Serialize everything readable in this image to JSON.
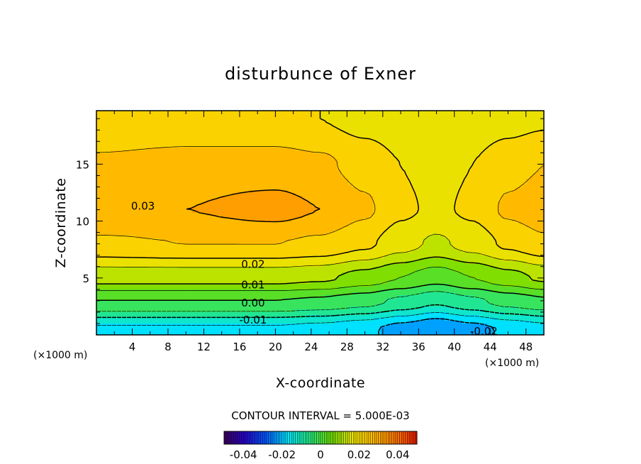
{
  "chart_data": {
    "type": "heatmap",
    "title": "disturbunce of Exner",
    "xlabel": "X-coordinate",
    "ylabel": "Z-coordinate",
    "x_unit": "(×1000 m)",
    "y_unit": "(×1000 m)",
    "xlim": [
      0,
      50
    ],
    "ylim": [
      0,
      19.7
    ],
    "x_ticks": [
      4,
      8,
      12,
      16,
      20,
      24,
      28,
      32,
      36,
      40,
      44,
      48
    ],
    "y_ticks": [
      5,
      10,
      15
    ],
    "contour_interval_text": "CONTOUR INTERVAL = 5.000E-03",
    "contour_interval": 0.005,
    "contour_labels": [
      {
        "text": "0.03",
        "x": 5.2,
        "z": 11.3
      },
      {
        "text": "0.02",
        "x": 17.5,
        "z": 6.2
      },
      {
        "text": "0.01",
        "x": 17.5,
        "z": 4.4
      },
      {
        "text": "0.00",
        "x": 17.5,
        "z": 2.8
      },
      {
        "text": "-0.01",
        "x": 17.5,
        "z": 1.3
      },
      {
        "text": "-0.02",
        "x": 43.3,
        "z": 0.3
      }
    ],
    "colorbar": {
      "range": [
        -0.05,
        0.05
      ],
      "ticks": [
        "-0.04",
        "-0.02",
        "0",
        "0.02",
        "0.04"
      ],
      "tick_values": [
        -0.04,
        -0.02,
        0,
        0.02,
        0.04
      ]
    },
    "field_samples": {
      "x": [
        0,
        10,
        20,
        25,
        30,
        34,
        38,
        42,
        46,
        50
      ],
      "z": [
        0.5,
        3,
        5,
        8,
        11,
        15,
        19
      ],
      "values": [
        [
          -0.016,
          -0.016,
          -0.016,
          -0.017,
          -0.019,
          -0.022,
          -0.025,
          -0.022,
          -0.019,
          -0.017
        ],
        [
          0.0,
          0.0,
          0.0,
          -0.001,
          -0.003,
          -0.006,
          -0.009,
          -0.006,
          -0.003,
          -0.001
        ],
        [
          0.012,
          0.012,
          0.012,
          0.011,
          0.008,
          0.005,
          0.002,
          0.005,
          0.008,
          0.011
        ],
        [
          0.024,
          0.025,
          0.025,
          0.024,
          0.021,
          0.017,
          0.014,
          0.017,
          0.021,
          0.024
        ],
        [
          0.03,
          0.03,
          0.032,
          0.03,
          0.026,
          0.021,
          0.019,
          0.021,
          0.026,
          0.028
        ],
        [
          0.026,
          0.027,
          0.027,
          0.026,
          0.023,
          0.02,
          0.018,
          0.02,
          0.023,
          0.025
        ],
        [
          0.02,
          0.021,
          0.021,
          0.02,
          0.018,
          0.017,
          0.016,
          0.017,
          0.018,
          0.019
        ]
      ]
    }
  }
}
